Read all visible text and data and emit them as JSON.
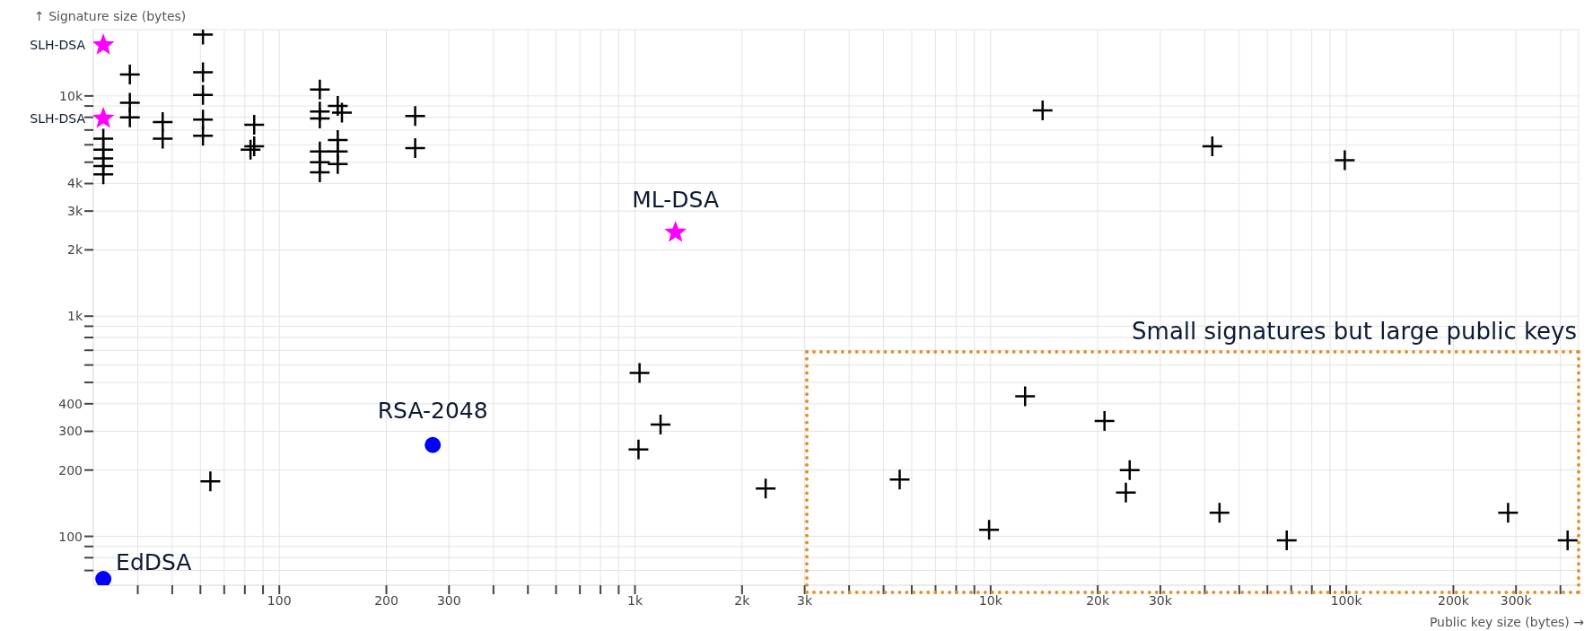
{
  "chart_data": {
    "type": "scatter",
    "xlabel": "Public key size (bytes) →",
    "ylabel": "↑ Signature size (bytes)",
    "log": "xy",
    "grid": true,
    "legend": false,
    "xlim": [
      30,
      450000
    ],
    "ylim": [
      60,
      20000
    ],
    "xticks": [
      {
        "value": 40,
        "label": null
      },
      {
        "value": 50,
        "label": null
      },
      {
        "value": 60,
        "label": null
      },
      {
        "value": 70,
        "label": null
      },
      {
        "value": 80,
        "label": null
      },
      {
        "value": 90,
        "label": null
      },
      100,
      200,
      300,
      {
        "value": 400,
        "label": null
      },
      {
        "value": 500,
        "label": null
      },
      {
        "value": 600,
        "label": null
      },
      {
        "value": 700,
        "label": null
      },
      {
        "value": 800,
        "label": null
      },
      {
        "value": 900,
        "label": null
      },
      {
        "value": 1000,
        "label": "1k"
      },
      {
        "value": 2000,
        "label": "2k"
      },
      {
        "value": 3000,
        "label": "3k"
      },
      {
        "value": 4000,
        "label": null
      },
      {
        "value": 5000,
        "label": null
      },
      {
        "value": 6000,
        "label": null
      },
      {
        "value": 7000,
        "label": null
      },
      {
        "value": 8000,
        "label": null
      },
      {
        "value": 9000,
        "label": null
      },
      {
        "value": 10000,
        "label": "10k"
      },
      {
        "value": 20000,
        "label": "20k"
      },
      {
        "value": 30000,
        "label": "30k"
      },
      {
        "value": 40000,
        "label": null
      },
      {
        "value": 50000,
        "label": null
      },
      {
        "value": 60000,
        "label": null
      },
      {
        "value": 70000,
        "label": null
      },
      {
        "value": 80000,
        "label": null
      },
      {
        "value": 90000,
        "label": null
      },
      {
        "value": 100000,
        "label": "100k"
      },
      {
        "value": 200000,
        "label": "200k"
      },
      {
        "value": 300000,
        "label": "300k"
      },
      {
        "value": 400000,
        "label": null
      }
    ],
    "yticks": [
      {
        "value": 70,
        "label": null
      },
      {
        "value": 80,
        "label": null
      },
      {
        "value": 90,
        "label": null
      },
      100,
      200,
      300,
      400,
      {
        "value": 500,
        "label": null
      },
      {
        "value": 600,
        "label": null
      },
      {
        "value": 700,
        "label": null
      },
      {
        "value": 800,
        "label": null
      },
      {
        "value": 900,
        "label": null
      },
      {
        "value": 1000,
        "label": "1k"
      },
      {
        "value": 2000,
        "label": "2k"
      },
      {
        "value": 3000,
        "label": "3k"
      },
      {
        "value": 4000,
        "label": "4k"
      },
      {
        "value": 5000,
        "label": null
      },
      {
        "value": 6000,
        "label": null
      },
      {
        "value": 7000,
        "label": null
      },
      {
        "value": 8000,
        "label": null
      },
      {
        "value": 9000,
        "label": null
      },
      {
        "value": 10000,
        "label": "10k"
      }
    ],
    "annotations": [
      "Small signatures but large public keys"
    ],
    "series": [
      {
        "color": "#000000",
        "marker": "cross",
        "x": [
          32,
          32,
          32,
          32,
          32,
          38,
          38,
          38,
          47,
          47,
          61,
          61,
          61,
          61,
          61,
          85,
          85,
          83,
          130,
          130,
          130,
          130,
          130,
          130,
          146,
          150,
          146,
          146,
          146,
          241,
          241,
          64,
          1030,
          1180,
          1023,
          2330,
          5550,
          9900,
          12500,
          20900,
          24600,
          24000,
          44000,
          68000,
          285000,
          419000,
          14000,
          42000,
          99000
        ],
        "values": [
          6400,
          5700,
          5200,
          4800,
          4400,
          12500,
          9300,
          8000,
          7600,
          6400,
          19000,
          12800,
          10100,
          7800,
          6600,
          7400,
          5900,
          5700,
          10700,
          8500,
          7900,
          5600,
          5000,
          4500,
          9000,
          8400,
          6300,
          5600,
          4900,
          8100,
          5800,
          178,
          552,
          322,
          248,
          165,
          181,
          107,
          433,
          334,
          200,
          158,
          128,
          96,
          128,
          96,
          8600,
          5900,
          5100
        ]
      },
      {
        "name": "SLH-DSA",
        "color": "#ff00ff",
        "marker": "star",
        "x": [
          32,
          32
        ],
        "values": [
          17000,
          7900
        ]
      },
      {
        "name": "ML-DSA",
        "color": "#ff00ff",
        "marker": "star",
        "x": [
          1300
        ],
        "values": [
          2400
        ]
      },
      {
        "name": "RSA-2048",
        "color": "#0000ff",
        "marker": "circle",
        "x": [
          270
        ],
        "values": [
          260
        ]
      },
      {
        "name": "EdDSA",
        "color": "#0000ff",
        "marker": "circle",
        "x": [
          32
        ],
        "values": [
          64
        ]
      }
    ]
  }
}
